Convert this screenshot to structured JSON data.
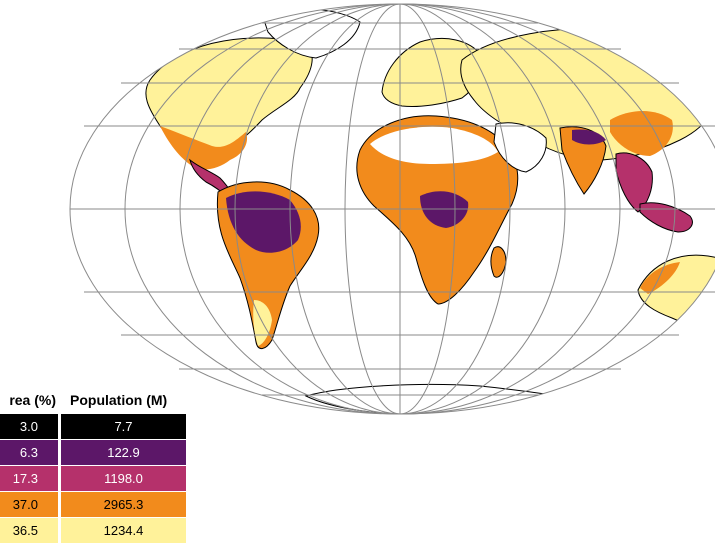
{
  "legend": {
    "headers": {
      "area": "rea (%)",
      "population": "Population (M)"
    },
    "rows": [
      {
        "area": "3.0",
        "population": "7.7",
        "color": "#000000",
        "text_color": "#ffffff"
      },
      {
        "area": "6.3",
        "population": "122.9",
        "color": "#5c1768",
        "text_color": "#ffffff"
      },
      {
        "area": "17.3",
        "population": "1198.0",
        "color": "#b5316b",
        "text_color": "#ffffff"
      },
      {
        "area": "37.0",
        "population": "2965.3",
        "color": "#f28b1c",
        "text_color": "#000000"
      },
      {
        "area": "36.5",
        "population": "1234.4",
        "color": "#fff29a",
        "text_color": "#000000"
      }
    ]
  },
  "map": {
    "projection": "mollweide",
    "graticule_color": "#8a8a8a",
    "coast_color": "#000000"
  }
}
